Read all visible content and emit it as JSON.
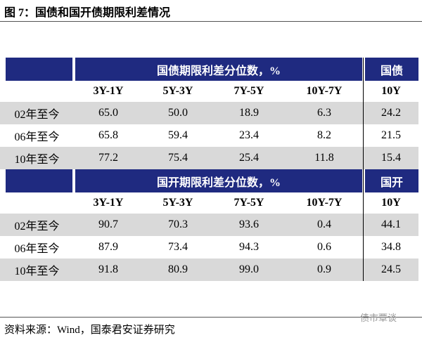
{
  "header": {
    "title": "图 7：国债和国开债期限利差情况"
  },
  "table": {
    "sections": [
      {
        "title": "国债期限利差分位数，%",
        "side_title": "国债",
        "columns": [
          "3Y-1Y",
          "5Y-3Y",
          "7Y-5Y",
          "10Y-7Y",
          "10Y"
        ],
        "rows": [
          {
            "label": "02年至今",
            "values": [
              "65.0",
              "50.0",
              "18.9",
              "6.3",
              "24.2"
            ]
          },
          {
            "label": "06年至今",
            "values": [
              "65.8",
              "59.4",
              "23.4",
              "8.2",
              "21.5"
            ]
          },
          {
            "label": "10年至今",
            "values": [
              "77.2",
              "75.4",
              "25.4",
              "11.8",
              "15.4"
            ]
          }
        ]
      },
      {
        "title": "国开期限利差分位数，%",
        "side_title": "国开",
        "columns": [
          "3Y-1Y",
          "5Y-3Y",
          "7Y-5Y",
          "10Y-7Y",
          "10Y"
        ],
        "rows": [
          {
            "label": "02年至今",
            "values": [
              "90.7",
              "70.3",
              "93.6",
              "0.4",
              "44.1"
            ]
          },
          {
            "label": "06年至今",
            "values": [
              "87.9",
              "73.4",
              "94.3",
              "0.6",
              "34.8"
            ]
          },
          {
            "label": "10年至今",
            "values": [
              "91.8",
              "80.9",
              "99.0",
              "0.9",
              "24.5"
            ]
          }
        ]
      }
    ]
  },
  "footer": {
    "source": "资料来源：Wind，国泰君安证券研究"
  },
  "watermark": "债市覃谈"
}
